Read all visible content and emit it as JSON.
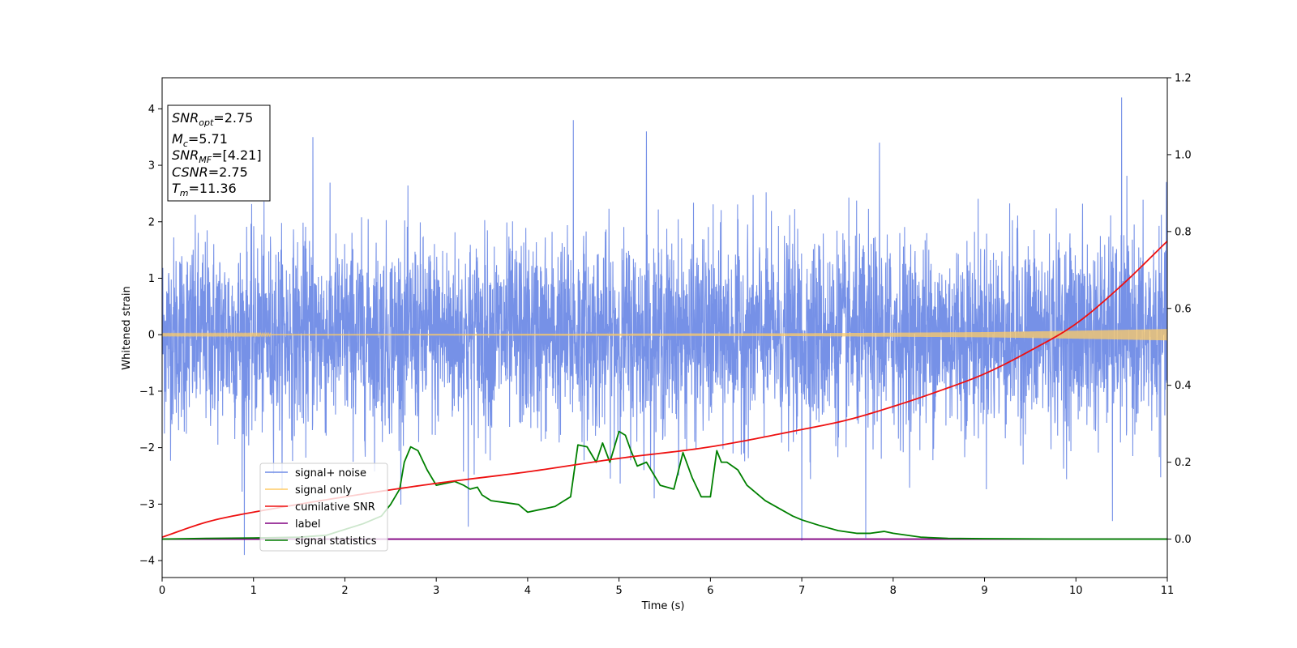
{
  "chart_data": {
    "type": "line",
    "xlabel": "Time (s)",
    "ylabel": "Whitened strain",
    "xlim": [
      0,
      11
    ],
    "ylim_left": [
      -4.3,
      4.55
    ],
    "ylim_right": [
      -0.1,
      1.2
    ],
    "xticks": [
      "0",
      "1",
      "2",
      "3",
      "4",
      "5",
      "6",
      "7",
      "8",
      "9",
      "10",
      "11"
    ],
    "yticks_left": [
      "−4",
      "−3",
      "−2",
      "−1",
      "0",
      "1",
      "2",
      "3",
      "4"
    ],
    "yticks_right": [
      "0.0",
      "0.2",
      "0.4",
      "0.6",
      "0.8",
      "1.0",
      "1.2"
    ],
    "legend_position": "lower-left",
    "stats_box": {
      "snr_opt": {
        "name": "SNR",
        "sub": "opt",
        "value": "=2.75"
      },
      "mc": {
        "name": "M",
        "sub": "c",
        "value": "=5.71"
      },
      "snr_mf": {
        "name": "SNR",
        "sub": "MF",
        "value": "=[4.21]"
      },
      "csnr": {
        "name": "CSNR",
        "value": "=2.75"
      },
      "tm": {
        "name": "T",
        "sub": "m",
        "value": "=11.36"
      }
    },
    "series": [
      {
        "name": "signal+ noise",
        "color": "#6f8be6",
        "axis": "left",
        "description_values": "dense whitened noise, typical range -2.3 to 2.3, extremes -3.9 to 4.2",
        "spikes": [
          {
            "x": 0.9,
            "y": -3.9
          },
          {
            "x": 1.65,
            "y": 3.5
          },
          {
            "x": 3.35,
            "y": -3.4
          },
          {
            "x": 4.5,
            "y": 3.8
          },
          {
            "x": 5.3,
            "y": 3.6
          },
          {
            "x": 7.0,
            "y": -3.65
          },
          {
            "x": 7.7,
            "y": -3.6
          },
          {
            "x": 7.85,
            "y": 3.4
          },
          {
            "x": 10.5,
            "y": 4.2
          },
          {
            "x": 10.4,
            "y": -3.3
          }
        ]
      },
      {
        "name": "signal only",
        "color": "#ffcc66",
        "axis": "left",
        "amplitude": [
          [
            0,
            0.01
          ],
          [
            4,
            0.015
          ],
          [
            7,
            0.025
          ],
          [
            9,
            0.045
          ],
          [
            10,
            0.07
          ],
          [
            11,
            0.1
          ]
        ]
      },
      {
        "name": "cumilative SNR",
        "color": "#ee1111",
        "axis": "right",
        "x": [
          0,
          0.5,
          1,
          2,
          3,
          4,
          5,
          6,
          7,
          7.5,
          8,
          8.5,
          9,
          9.5,
          10,
          10.5,
          11
        ],
        "y": [
          0.005,
          0.045,
          0.07,
          0.11,
          0.145,
          0.175,
          0.21,
          0.24,
          0.285,
          0.31,
          0.345,
          0.385,
          0.43,
          0.49,
          0.56,
          0.66,
          0.775
        ]
      },
      {
        "name": "label",
        "color": "#800080",
        "axis": "right",
        "x": [
          0,
          11
        ],
        "y": [
          0,
          0
        ]
      },
      {
        "name": "signal statistics",
        "color": "#008000",
        "axis": "right",
        "x": [
          0,
          0.5,
          1.0,
          1.5,
          1.8,
          2.0,
          2.2,
          2.4,
          2.5,
          2.6,
          2.65,
          2.72,
          2.8,
          2.9,
          3.0,
          3.1,
          3.2,
          3.3,
          3.37,
          3.45,
          3.5,
          3.6,
          3.75,
          3.9,
          4.0,
          4.1,
          4.2,
          4.3,
          4.4,
          4.47,
          4.55,
          4.65,
          4.75,
          4.82,
          4.9,
          5.0,
          5.07,
          5.13,
          5.2,
          5.3,
          5.45,
          5.6,
          5.7,
          5.8,
          5.9,
          6.0,
          6.07,
          6.12,
          6.18,
          6.3,
          6.4,
          6.5,
          6.6,
          6.75,
          6.9,
          7.0,
          7.2,
          7.4,
          7.6,
          7.75,
          7.9,
          8.0,
          8.3,
          8.6,
          9.0,
          10.0,
          11.0
        ],
        "y": [
          0.0,
          0.002,
          0.003,
          0.005,
          0.01,
          0.025,
          0.04,
          0.06,
          0.09,
          0.13,
          0.2,
          0.24,
          0.23,
          0.18,
          0.14,
          0.145,
          0.15,
          0.14,
          0.13,
          0.135,
          0.115,
          0.1,
          0.095,
          0.09,
          0.07,
          0.075,
          0.08,
          0.085,
          0.1,
          0.11,
          0.245,
          0.24,
          0.2,
          0.25,
          0.2,
          0.28,
          0.27,
          0.23,
          0.19,
          0.2,
          0.14,
          0.13,
          0.225,
          0.16,
          0.11,
          0.11,
          0.23,
          0.2,
          0.2,
          0.18,
          0.14,
          0.12,
          0.1,
          0.08,
          0.06,
          0.05,
          0.035,
          0.022,
          0.015,
          0.015,
          0.02,
          0.015,
          0.005,
          0.002,
          0.001,
          0.0,
          0.0
        ]
      }
    ]
  }
}
